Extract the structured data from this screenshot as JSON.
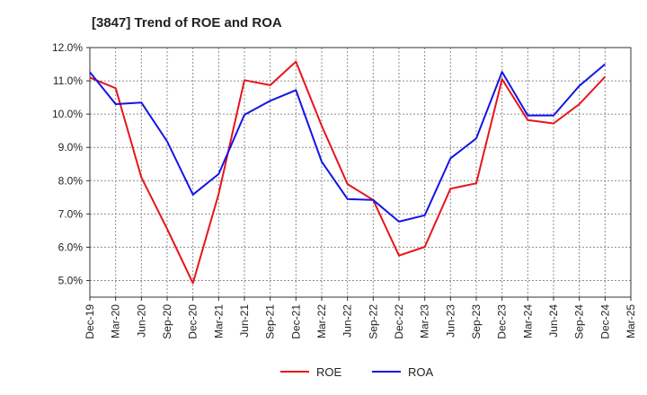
{
  "chart_data": {
    "type": "line",
    "title": "[3847]  Trend of ROE and ROA",
    "xlabel": "",
    "ylabel": "",
    "categories": [
      "Dec-19",
      "Mar-20",
      "Jun-20",
      "Sep-20",
      "Dec-20",
      "Mar-21",
      "Jun-21",
      "Sep-21",
      "Dec-21",
      "Mar-22",
      "Jun-22",
      "Sep-22",
      "Dec-22",
      "Mar-23",
      "Jun-23",
      "Sep-23",
      "Dec-23",
      "Mar-24",
      "Jun-24",
      "Sep-24",
      "Dec-24",
      "Mar-25"
    ],
    "y_ticks": [
      "12.0%",
      "11.0%",
      "10.0%",
      "9.0%",
      "8.0%",
      "7.0%",
      "6.0%",
      "5.0%"
    ],
    "y_tick_values": [
      12,
      11,
      10,
      9,
      8,
      7,
      6,
      5
    ],
    "ylim": [
      4.5,
      12.0
    ],
    "grid": true,
    "legend_position": "bottom",
    "series": [
      {
        "name": "ROE",
        "color": "#e8141b",
        "values": [
          11.1,
          10.78,
          8.1,
          6.55,
          4.92,
          7.6,
          11.02,
          10.87,
          11.58,
          9.65,
          7.9,
          7.42,
          5.75,
          6.01,
          7.76,
          7.92,
          11.05,
          9.82,
          9.72,
          10.3,
          11.12,
          null
        ]
      },
      {
        "name": "ROA",
        "color": "#1414e6",
        "values": [
          11.26,
          10.3,
          10.35,
          9.18,
          7.58,
          8.2,
          9.98,
          10.4,
          10.72,
          8.57,
          7.45,
          7.42,
          6.77,
          6.96,
          8.67,
          9.27,
          11.27,
          9.96,
          9.96,
          10.85,
          11.5,
          null
        ]
      }
    ]
  }
}
